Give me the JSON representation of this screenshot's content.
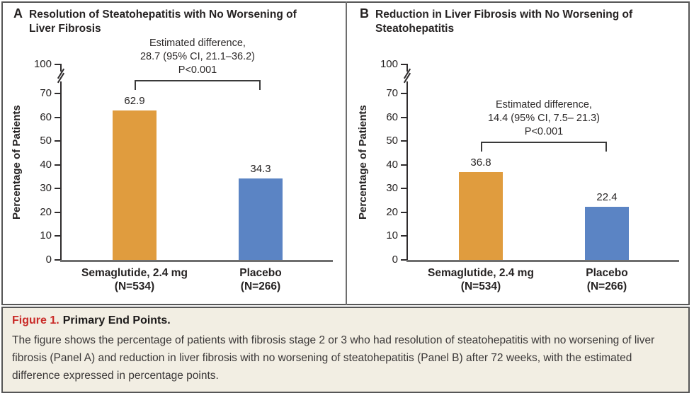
{
  "caption": {
    "label": "Figure 1.",
    "title": "Primary End Points.",
    "body": "The figure shows the percentage of patients with fibrosis stage 2 or 3 who had resolution of steatohepatitis with no worsening of liver fibrosis (Panel A) and reduction in liver fibrosis with no worsening of steatohepatitis (Panel B) after 72 weeks, with the estimated difference expressed in percentage points."
  },
  "colors": {
    "semaglutide_bar": "#E09C3E",
    "placebo_bar": "#5B84C4",
    "figure_label_red": "#C92A27",
    "caption_background": "#F2EEE3",
    "axis": "#2F2C2D",
    "baseline": "#6E6E6E",
    "bracket": "#3A3A3A"
  },
  "chart_data": [
    {
      "type": "bar",
      "panel": "A",
      "title": "Resolution of Steatohepatitis with No Worsening of\nLiver Fibrosis",
      "ylabel": "Percentage of Patients",
      "ylim": [
        0,
        100
      ],
      "yticks": [
        0,
        10,
        20,
        30,
        40,
        50,
        60,
        70
      ],
      "ytop_tick": 100,
      "axis_break": true,
      "grid": false,
      "legend": false,
      "categories": [
        "Semaglutide, 2.4 mg\n(N=534)",
        "Placebo\n(N=266)"
      ],
      "series_names": [
        "Semaglutide, 2.4 mg",
        "Placebo"
      ],
      "values": [
        62.9,
        34.3
      ],
      "bar_colors": [
        "#E09C3E",
        "#5B84C4"
      ],
      "annotation": "Estimated difference,\n28.7 (95% CI, 21.1–36.2)\nP<0.001"
    },
    {
      "type": "bar",
      "panel": "B",
      "title": "Reduction in Liver Fibrosis with No Worsening of\nSteatohepatitis",
      "ylabel": "Percentage of Patients",
      "ylim": [
        0,
        100
      ],
      "yticks": [
        0,
        10,
        20,
        30,
        40,
        50,
        60,
        70
      ],
      "ytop_tick": 100,
      "axis_break": true,
      "grid": false,
      "legend": false,
      "categories": [
        "Semaglutide, 2.4 mg\n(N=534)",
        "Placebo\n(N=266)"
      ],
      "series_names": [
        "Semaglutide, 2.4 mg",
        "Placebo"
      ],
      "values": [
        36.8,
        22.4
      ],
      "bar_colors": [
        "#E09C3E",
        "#5B84C4"
      ],
      "annotation": "Estimated difference,\n14.4 (95% CI, 7.5– 21.3)\nP<0.001"
    }
  ]
}
